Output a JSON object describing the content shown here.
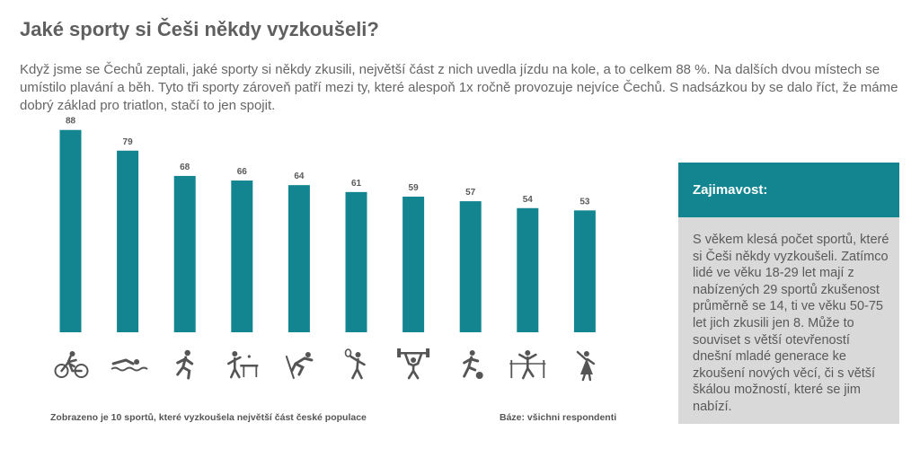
{
  "title": "Jaké sporty si Češi někdy vyzkoušeli?",
  "intro": "Když jsme se Čechů zeptali, jaké sporty si někdy zkusili, největší část z nich uvedla jízdu na kole, a to celkem 88 %. Na dalších dvou místech se umístilo plavání a běh. Tyto tři sporty zároveň patří mezi ty, které alespoň 1x ročně provozuje nejvíce Čechů. S nadsázkou by se dalo říct, že máme dobrý základ pro triatlon, stačí to jen spojit.",
  "footnote_left": "Zobrazeno je 10 sportů, které vyzkoušela největší část české populace",
  "footnote_right": "Báze: všichni respondenti",
  "sidebar": {
    "heading": "Zajimavost:",
    "text": "S věkem klesá počet sportů, které si Češi někdy vyzkoušeli. Zatímco lidé ve věku 18-29 let mají z nabízených 29 sportů zkušenost průměrně se 14, ti ve věku 50-75 let jich zkusili jen 8. Může to souviset s větší otevřeností dnešní mladé generace ke zkoušení nových věcí, či s větší škálou možností, které se jim nabízí."
  },
  "colors": {
    "bar": "#138591",
    "accent": "#138591",
    "panel": "#d9d9d9",
    "icon": "#555555"
  },
  "chart_data": {
    "type": "bar",
    "values": [
      88,
      79,
      68,
      66,
      64,
      61,
      59,
      57,
      54,
      53
    ],
    "icons": [
      "cycling-icon",
      "swimming-icon",
      "running-icon",
      "table-tennis-icon",
      "skiing-icon",
      "tennis-icon",
      "weightlifting-icon",
      "football-icon",
      "athletics-finish-icon",
      "dancing-icon"
    ],
    "ylim": [
      0,
      100
    ],
    "grid": false,
    "data_labels": true
  }
}
